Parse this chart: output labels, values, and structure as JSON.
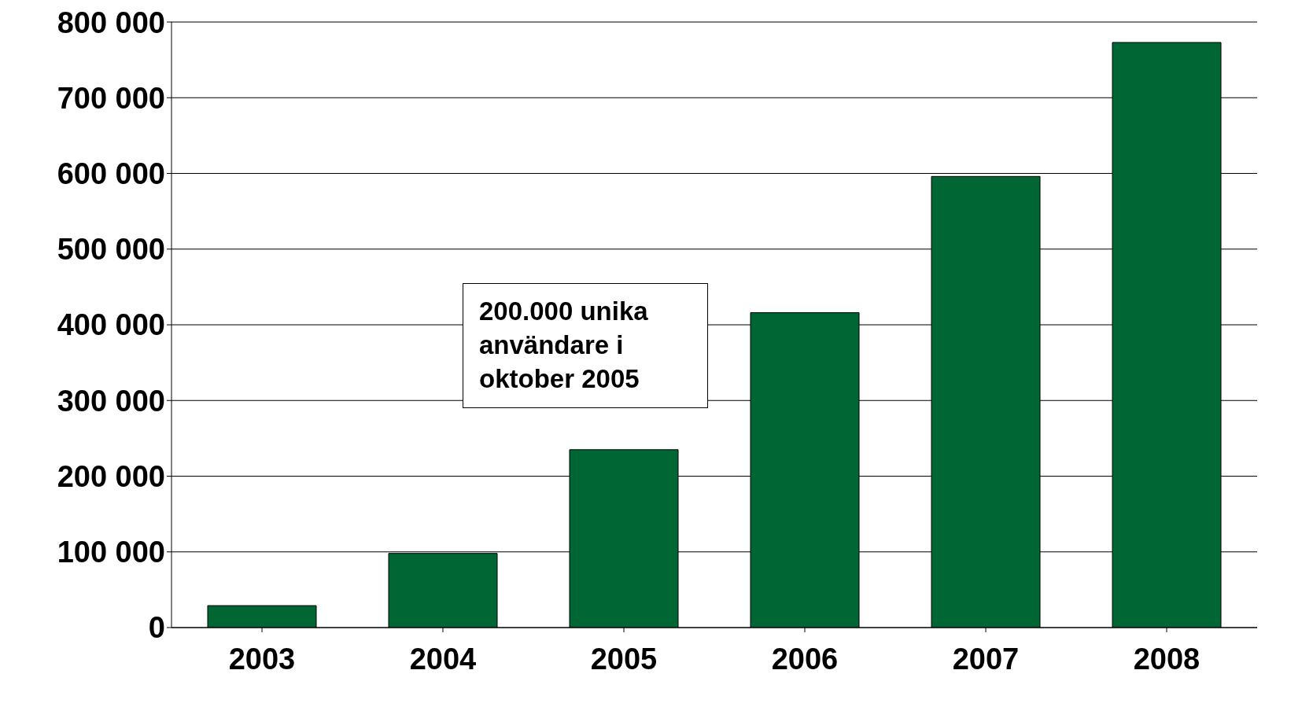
{
  "chart_data": {
    "type": "bar",
    "categories": [
      "2003",
      "2004",
      "2005",
      "2006",
      "2007",
      "2008"
    ],
    "values": [
      29000,
      98000,
      235000,
      416000,
      596000,
      773000
    ],
    "colors": [
      "#006633",
      "#006633",
      "#006633",
      "#006633",
      "#006633",
      "#006633"
    ],
    "ylim": [
      0,
      800000
    ],
    "yticks": [
      {
        "value": 0,
        "label": "0"
      },
      {
        "value": 100000,
        "label": "100 000"
      },
      {
        "value": 200000,
        "label": "200 000"
      },
      {
        "value": 300000,
        "label": "300 000"
      },
      {
        "value": 400000,
        "label": "400 000"
      },
      {
        "value": 500000,
        "label": "500 000"
      },
      {
        "value": 600000,
        "label": "600 000"
      },
      {
        "value": 700000,
        "label": "700 000"
      },
      {
        "value": 800000,
        "label": "800 000"
      }
    ],
    "grid": "y",
    "annotations": [
      "200.000 unika användare i oktober 2005"
    ]
  }
}
